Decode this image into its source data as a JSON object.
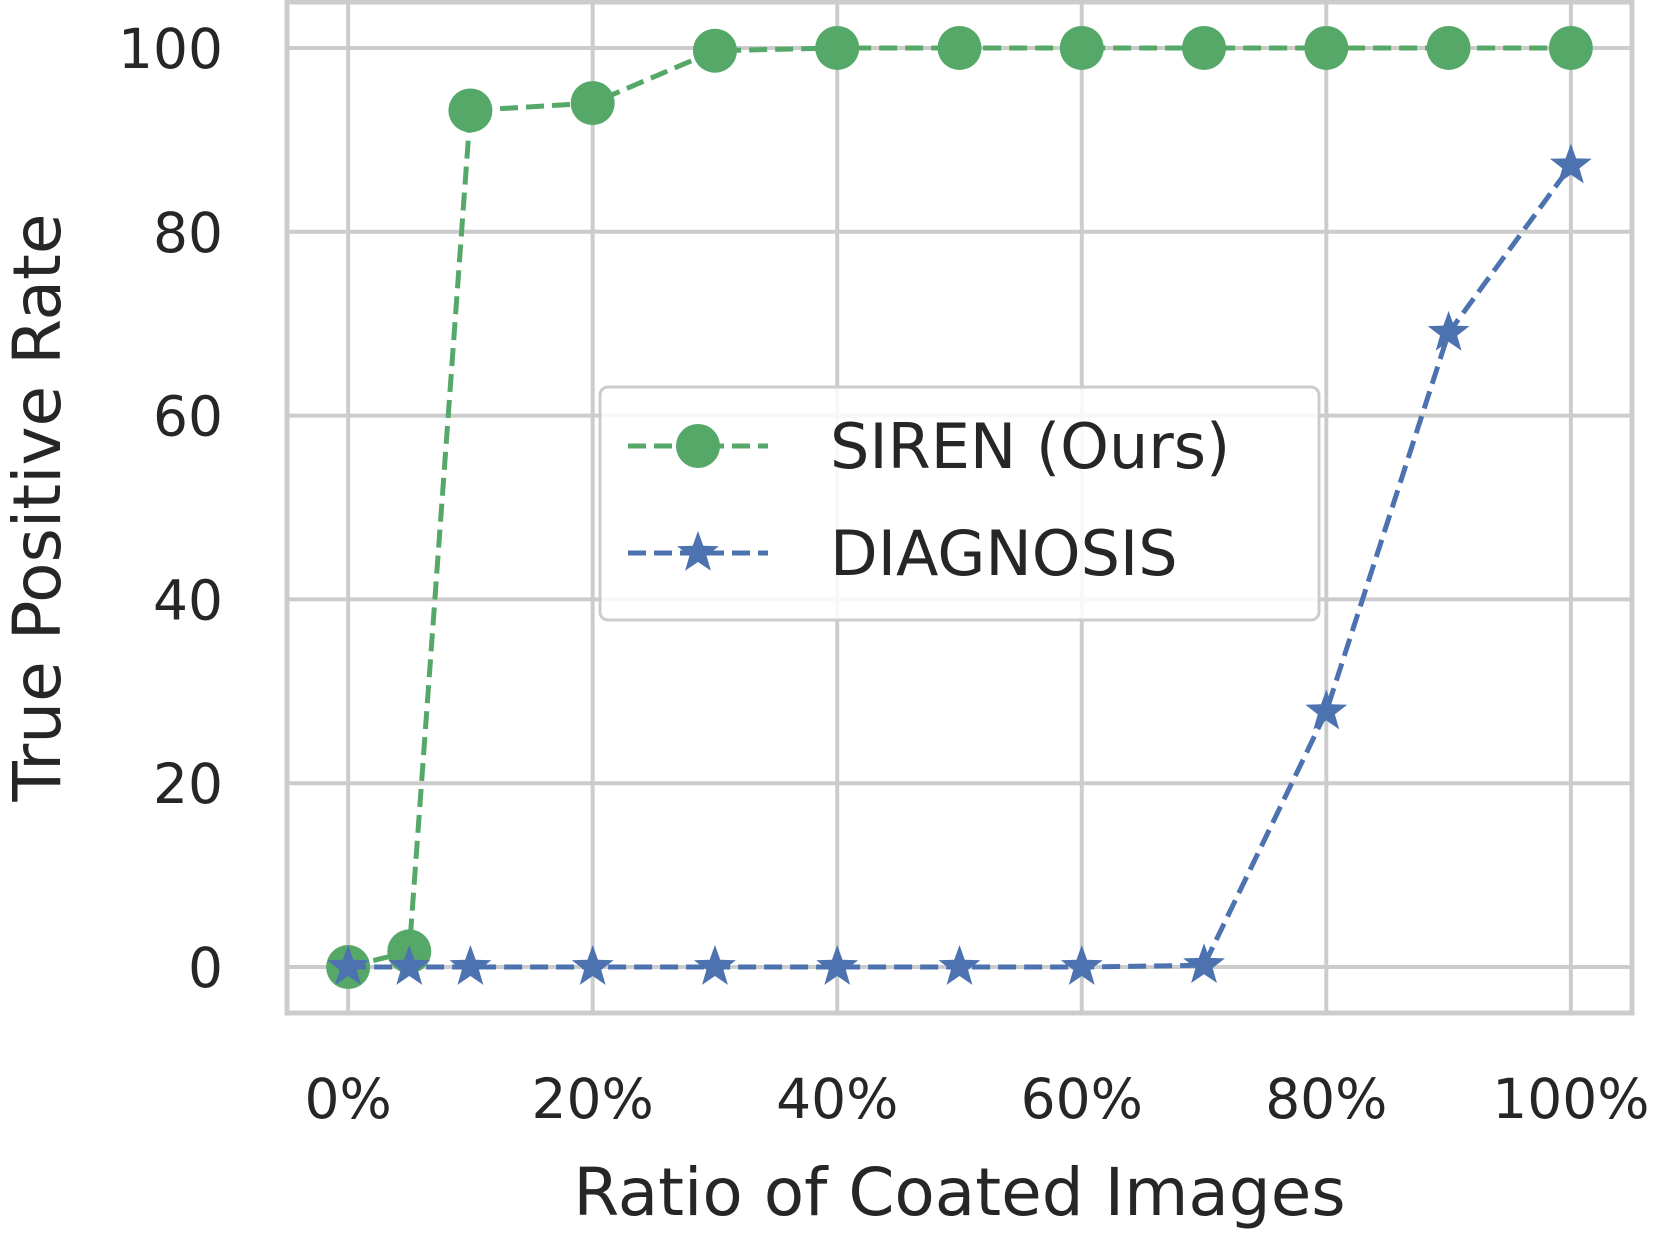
{
  "chart_data": {
    "type": "line",
    "xlabel": "Ratio of Coated Images",
    "ylabel": "True Positive Rate",
    "x_tick_labels": [
      "0%",
      "20%",
      "40%",
      "60%",
      "80%",
      "100%"
    ],
    "x_ticks": [
      0,
      20,
      40,
      60,
      80,
      100
    ],
    "y_ticks": [
      0,
      20,
      40,
      60,
      80,
      100
    ],
    "y_tick_labels": [
      "0",
      "20",
      "40",
      "60",
      "80",
      "100"
    ],
    "xlim": [
      -5,
      105
    ],
    "ylim": [
      -5,
      105
    ],
    "grid": true,
    "legend_position": "center",
    "series": [
      {
        "name": "SIREN (Ours)",
        "color": "#55a868",
        "marker": "circle",
        "linestyle": "dashed",
        "x": [
          0,
          5,
          10,
          20,
          30,
          40,
          50,
          60,
          70,
          80,
          90,
          100
        ],
        "y": [
          0,
          1.7,
          93.2,
          94.0,
          99.7,
          100,
          100,
          100,
          100,
          100,
          100,
          100
        ]
      },
      {
        "name": "DIAGNOSIS",
        "color": "#4c72b0",
        "marker": "star",
        "linestyle": "dashed",
        "x": [
          0,
          5,
          10,
          20,
          30,
          40,
          50,
          60,
          70,
          80,
          90,
          100
        ],
        "y": [
          0,
          0,
          0,
          0,
          0,
          0,
          0,
          0,
          0.2,
          27.8,
          69.0,
          87.2
        ]
      }
    ]
  }
}
